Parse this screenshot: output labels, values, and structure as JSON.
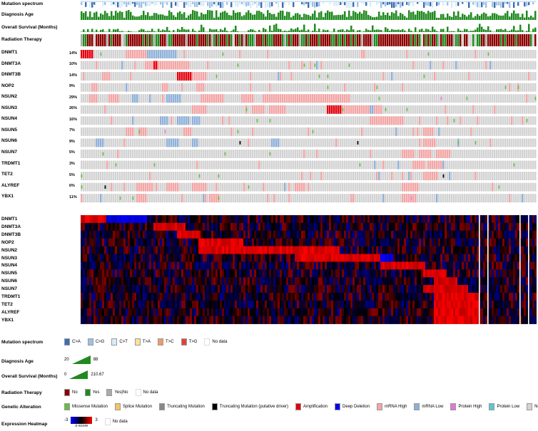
{
  "clinical_tracks": [
    {
      "label": "Mutation spectrum"
    },
    {
      "label": "Diagnosis Age"
    },
    {
      "label": "Overall Survival (Months)"
    },
    {
      "label": "Radiation Therapy"
    }
  ],
  "genes": [
    {
      "name": "DNMT1",
      "pct": "14%"
    },
    {
      "name": "DNMT3A",
      "pct": "10%"
    },
    {
      "name": "DNMT3B",
      "pct": "14%"
    },
    {
      "name": "NOP2",
      "pct": "9%"
    },
    {
      "name": "NSUN2",
      "pct": "29%"
    },
    {
      "name": "NSUN3",
      "pct": "26%"
    },
    {
      "name": "NSUN4",
      "pct": "16%"
    },
    {
      "name": "NSUN5",
      "pct": "7%"
    },
    {
      "name": "NSUN6",
      "pct": "9%"
    },
    {
      "name": "NSUN7",
      "pct": "5%"
    },
    {
      "name": "TRDMT1",
      "pct": "3%"
    },
    {
      "name": "TET2",
      "pct": "5%"
    },
    {
      "name": "ALYREF",
      "pct": "6%"
    },
    {
      "name": "YBX1",
      "pct": "11%"
    }
  ],
  "legend": {
    "mutation_spectrum": {
      "title": "Mutation spectrum",
      "items": [
        {
          "label": "C>A",
          "color": "#3d6eb4"
        },
        {
          "label": "C>G",
          "color": "#9ec1e6"
        },
        {
          "label": "C>T",
          "color": "#d9ecf7"
        },
        {
          "label": "T>A",
          "color": "#fbe29a"
        },
        {
          "label": "T>C",
          "color": "#f19a6b"
        },
        {
          "label": "T>G",
          "color": "#e0413a"
        },
        {
          "label": "No data",
          "color": "#ffffff"
        }
      ]
    },
    "diagnosis_age": {
      "title": "Diagnosis Age",
      "min": "20",
      "max": "88"
    },
    "overall_survival": {
      "title": "Overall Survival (Months)",
      "min": "0",
      "max": "210.67"
    },
    "radiation": {
      "title": "Radiation Therapy",
      "items": [
        {
          "label": "No",
          "color": "#8b0000"
        },
        {
          "label": "Yes",
          "color": "#1f8a1f"
        },
        {
          "label": "Yes|No",
          "color": "#aaaaaa"
        },
        {
          "label": "No data",
          "color": "#ffffff"
        }
      ]
    },
    "genetic_alteration": {
      "title": "Genetic Alteration",
      "items": [
        {
          "label": "Missense Mutation",
          "color": "#66bb44"
        },
        {
          "label": "Splice Mutation",
          "color": "#f3c26b"
        },
        {
          "label": "Truncating Mutation",
          "color": "#888888"
        },
        {
          "label": "Truncating Mutation (putative driver)",
          "color": "#000000"
        },
        {
          "label": "Amplification",
          "color": "#e3000f"
        },
        {
          "label": "Deep Deletion",
          "color": "#0000ee"
        },
        {
          "label": "mRNA High",
          "color": "#f2a5a5"
        },
        {
          "label": "mRNA Low",
          "color": "#8fb0d8"
        },
        {
          "label": "Protein High",
          "color": "#e376d4"
        },
        {
          "label": "Protein Low",
          "color": "#5bc7d3"
        },
        {
          "label": "No alterations",
          "color": "#d3d3d3"
        }
      ]
    },
    "expression_heatmap": {
      "title": "Expression Heatmap",
      "min": "-3",
      "max": "3",
      "scale_label": "z-score",
      "no_data": "No data"
    }
  }
}
